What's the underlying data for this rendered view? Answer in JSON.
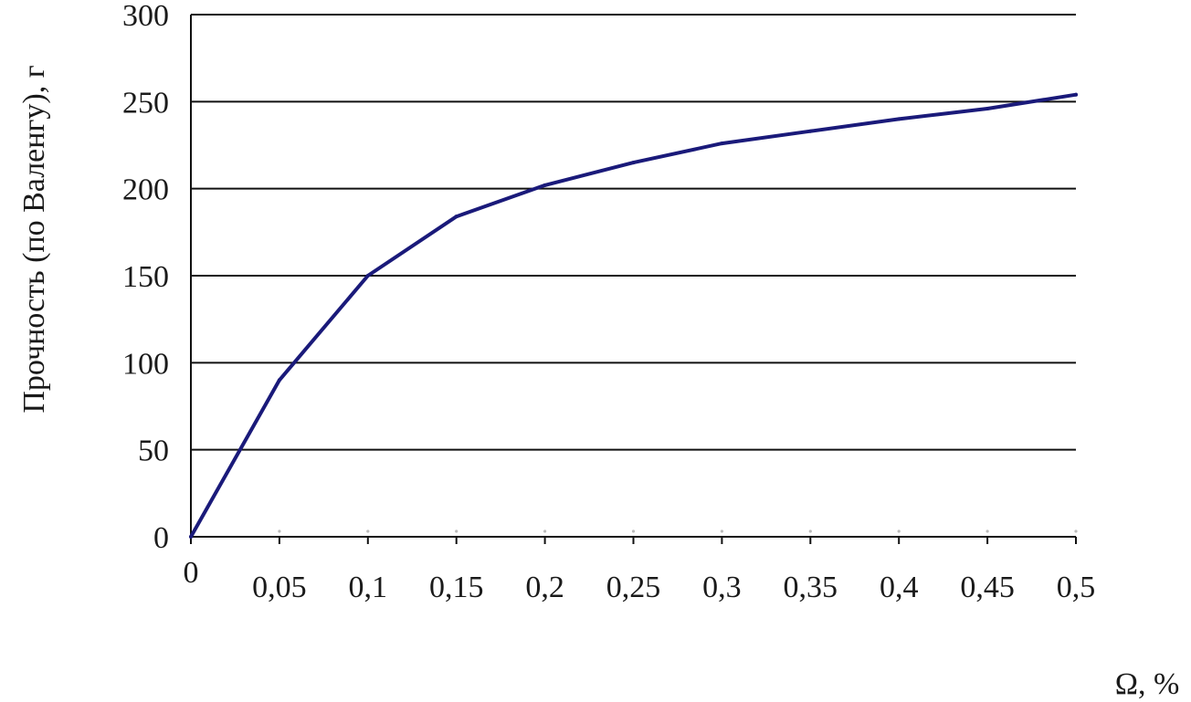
{
  "chart_data": {
    "type": "line",
    "xlabel": "Ω, %",
    "ylabel": "Прочность (по Валенгу), г",
    "xlim": [
      0,
      0.5
    ],
    "ylim": [
      0,
      300
    ],
    "grid": "horizontal",
    "x_ticks": [
      "0",
      "0,05",
      "0,1",
      "0,15",
      "0,2",
      "0,25",
      "0,3",
      "0,35",
      "0,4",
      "0,45",
      "0,5"
    ],
    "y_ticks": [
      "0",
      "50",
      "100",
      "150",
      "200",
      "250",
      "300"
    ],
    "series": [
      {
        "x": [
          0,
          0.05,
          0.1,
          0.15,
          0.2,
          0.25,
          0.3,
          0.35,
          0.4,
          0.45,
          0.5
        ],
        "y": [
          0,
          90,
          150,
          184,
          202,
          215,
          226,
          233,
          240,
          246,
          254
        ]
      }
    ],
    "colors": {
      "line": "#1a1a7a",
      "grid": "#111111",
      "text": "#1a1a1a"
    }
  }
}
